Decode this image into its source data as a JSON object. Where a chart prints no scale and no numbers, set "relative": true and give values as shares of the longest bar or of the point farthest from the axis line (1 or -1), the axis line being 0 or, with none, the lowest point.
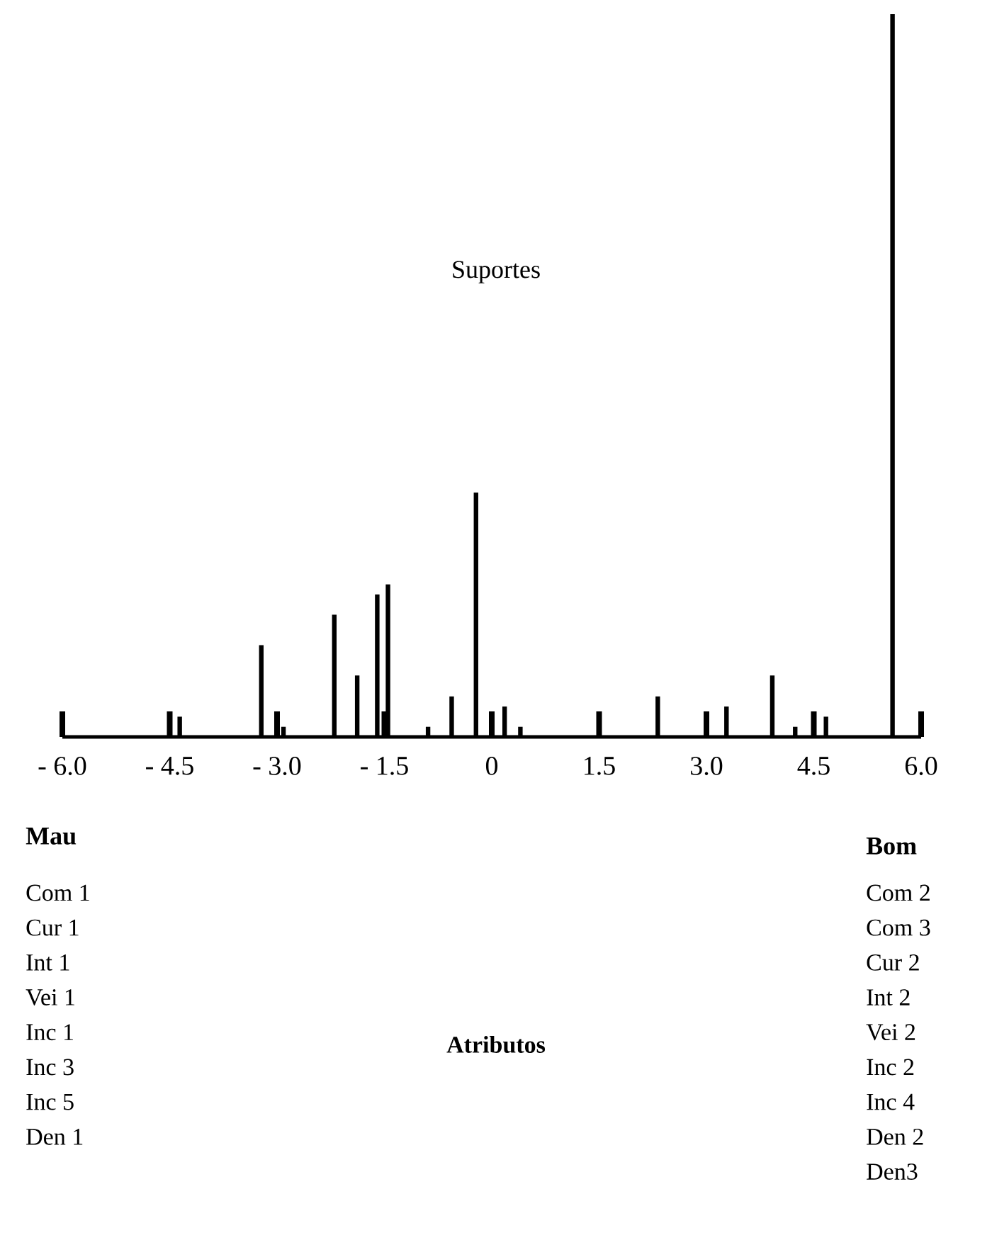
{
  "chart_data": {
    "type": "bar",
    "title": "Suportes",
    "x": [
      -4.36,
      -3.22,
      -2.91,
      -2.2,
      -1.88,
      -1.6,
      -1.45,
      -0.89,
      -0.56,
      -0.22,
      0.18,
      0.4,
      2.32,
      3.28,
      3.92,
      4.24,
      4.67,
      5.6
    ],
    "values": [
      0.028,
      0.127,
      0.014,
      0.169,
      0.085,
      0.197,
      0.211,
      0.014,
      0.056,
      0.338,
      0.042,
      0.014,
      0.056,
      0.042,
      0.085,
      0.014,
      0.028,
      1
    ],
    "relative": true,
    "color": "#000000",
    "xlim": [
      -6,
      6
    ],
    "xticks": [
      {
        "value": -6,
        "label": "- 6.0"
      },
      {
        "value": -4.5,
        "label": "- 4.5"
      },
      {
        "value": -3,
        "label": "- 3.0"
      },
      {
        "value": -1.5,
        "label": "- 1.5"
      },
      0,
      1.5,
      {
        "value": 3,
        "label": "3.0"
      },
      4.5,
      {
        "value": 6,
        "label": "6.0"
      }
    ],
    "annotations": [
      "Mau",
      "Bom",
      "Atributos",
      "Com 1",
      "Cur 1",
      "Int 1",
      "Vei 1",
      "Inc 1",
      "Inc 3",
      "Inc 5",
      "Den 1",
      "Com 2",
      "Com 3",
      "Cur 2",
      "Int 2",
      "Vei 2",
      "Inc 2",
      "Inc 4",
      "Den 2",
      "Den3"
    ]
  }
}
